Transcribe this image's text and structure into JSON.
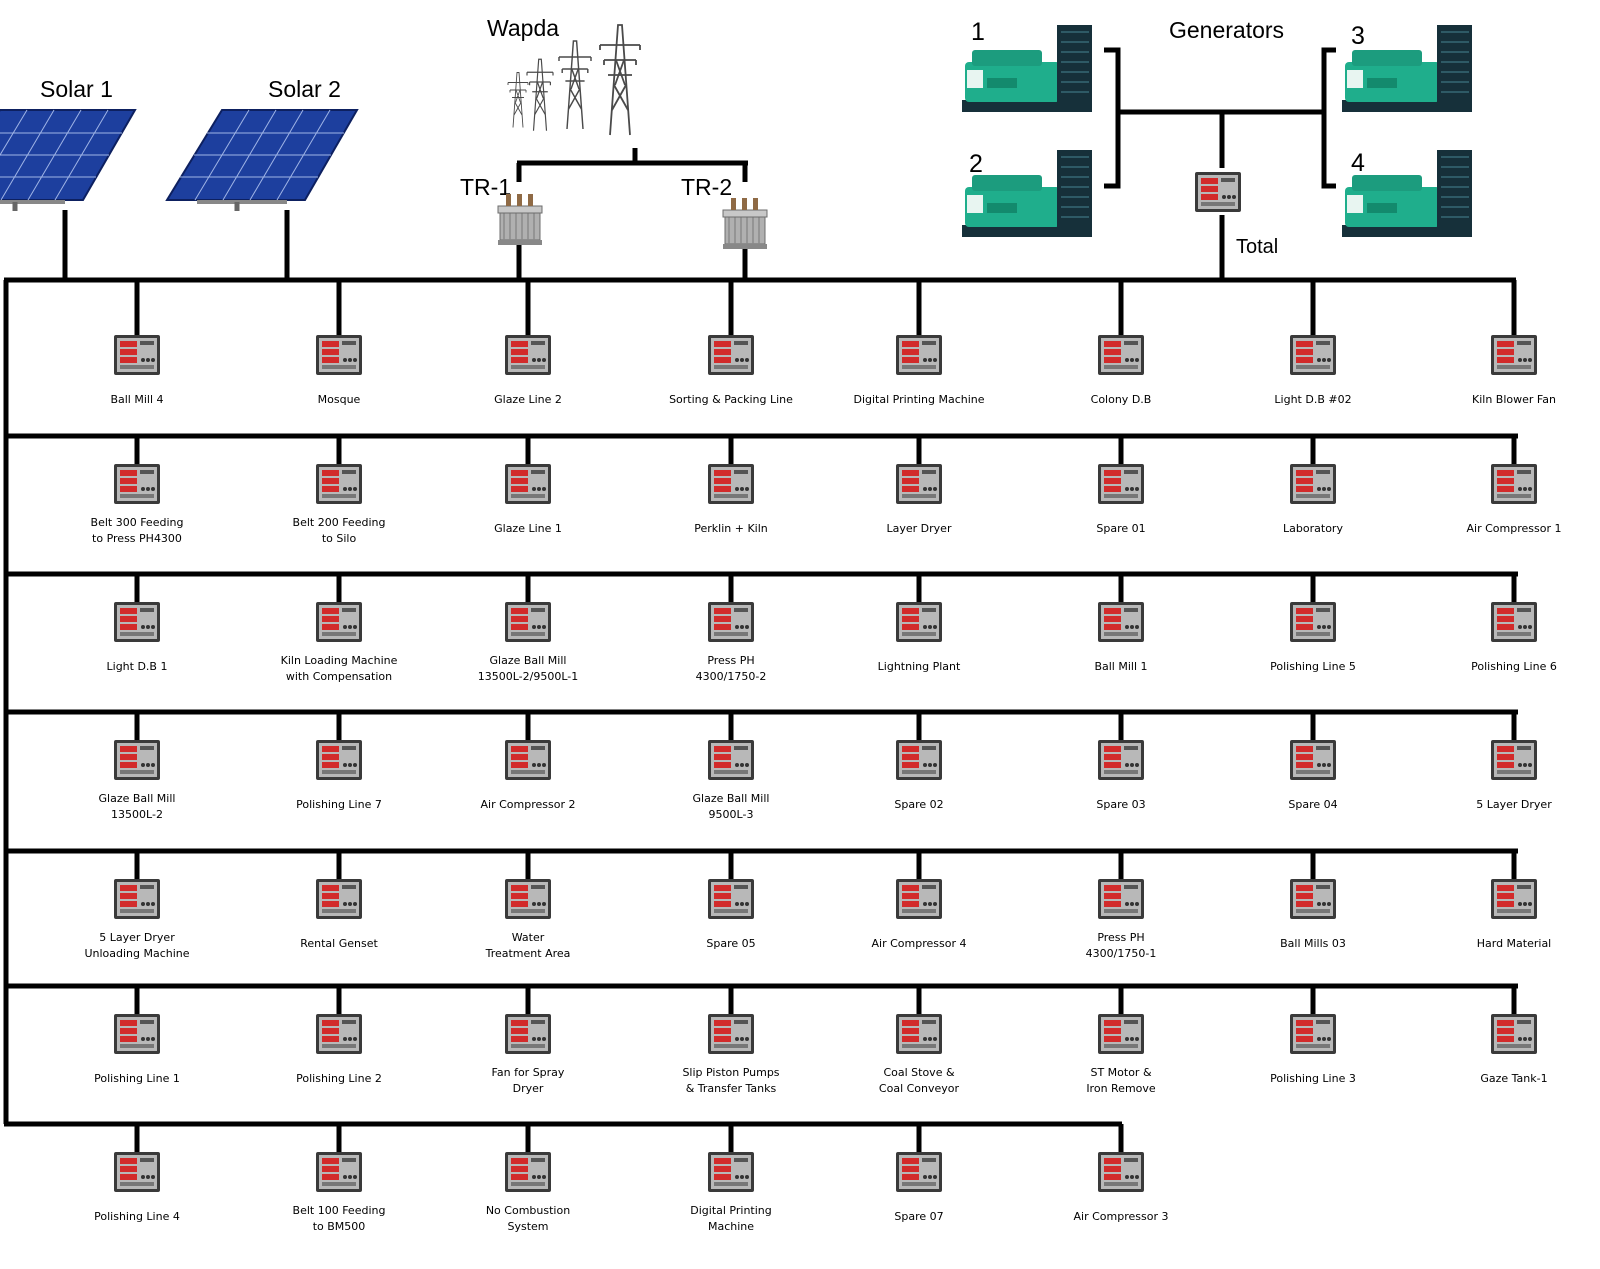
{
  "sources": {
    "solar1": "Solar 1",
    "solar2": "Solar 2",
    "wapda": "Wapda",
    "tr1": "TR-1",
    "tr2": "TR-2",
    "generators": "Generators",
    "gen_numbers": [
      "1",
      "2",
      "3",
      "4"
    ],
    "total": "Total"
  },
  "colors": {
    "line": "#000000",
    "solar_panel": "#1d3f9e",
    "solar_cell_line": "#9fb4e6",
    "generator": "#1fae8c",
    "generator_dark": "#16303a",
    "meter_body": "#3a3a3a",
    "meter_face": "#b8b8b8",
    "meter_display": "#d22b2b",
    "tower": "#4a4a4a",
    "transformer": "#b0b0b0"
  },
  "icons": {
    "meter": "power-meter-icon",
    "solar": "solar-panel-icon",
    "tower": "transmission-tower-icon",
    "transformer": "transformer-icon",
    "generator": "diesel-generator-icon"
  },
  "feeder_rows": [
    [
      [
        "Ball Mill 4"
      ],
      [
        "Mosque"
      ],
      [
        "Glaze Line 2"
      ],
      [
        "Sorting & Packing Line"
      ],
      [
        "Digital Printing Machine"
      ],
      [
        "Colony D.B"
      ],
      [
        "Light D.B #02"
      ],
      [
        "Kiln Blower Fan"
      ]
    ],
    [
      [
        "Belt 300 Feeding",
        "to Press PH4300"
      ],
      [
        "Belt 200 Feeding",
        "to Silo"
      ],
      [
        "Glaze Line 1"
      ],
      [
        "Perklin + Kiln"
      ],
      [
        "Layer Dryer"
      ],
      [
        "Spare 01"
      ],
      [
        "Laboratory"
      ],
      [
        "Air Compressor 1"
      ]
    ],
    [
      [
        "Light D.B 1"
      ],
      [
        "Kiln Loading Machine",
        "with Compensation"
      ],
      [
        "Glaze Ball Mill",
        "13500L-2/9500L-1"
      ],
      [
        "Press PH",
        "4300/1750-2"
      ],
      [
        "Lightning Plant"
      ],
      [
        "Ball Mill 1"
      ],
      [
        "Polishing Line 5"
      ],
      [
        "Polishing Line 6"
      ]
    ],
    [
      [
        "Glaze Ball Mill",
        "13500L-2"
      ],
      [
        "Polishing Line 7"
      ],
      [
        "Air Compressor 2"
      ],
      [
        "Glaze Ball Mill",
        "9500L-3"
      ],
      [
        "Spare 02"
      ],
      [
        "Spare 03"
      ],
      [
        "Spare 04"
      ],
      [
        "5 Layer Dryer"
      ]
    ],
    [
      [
        "5 Layer Dryer",
        "Unloading Machine"
      ],
      [
        "Rental Genset"
      ],
      [
        "Water",
        "Treatment Area"
      ],
      [
        "Spare 05"
      ],
      [
        "Air Compressor 4"
      ],
      [
        "Press PH",
        "4300/1750-1"
      ],
      [
        "Ball Mills 03"
      ],
      [
        "Hard Material"
      ]
    ],
    [
      [
        "Polishing Line 1"
      ],
      [
        "Polishing Line 2"
      ],
      [
        "Fan for Spray",
        "Dryer"
      ],
      [
        "Slip Piston Pumps",
        "& Transfer Tanks"
      ],
      [
        "Coal Stove &",
        "Coal Conveyor"
      ],
      [
        "ST Motor &",
        "Iron Remove"
      ],
      [
        "Polishing Line 3"
      ],
      [
        "Gaze Tank-1"
      ]
    ],
    [
      [
        "Polishing Line 4"
      ],
      [
        "Belt 100 Feeding",
        "to BM500"
      ],
      [
        "No Combustion",
        "System"
      ],
      [
        "Digital Printing",
        "Machine"
      ],
      [
        "Spare 07"
      ],
      [
        "Air Compressor 3"
      ]
    ]
  ]
}
